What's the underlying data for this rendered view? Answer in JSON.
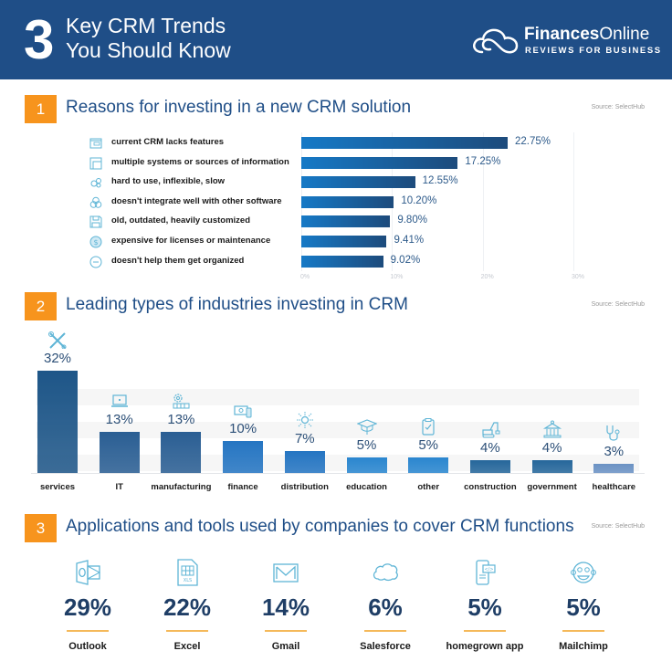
{
  "header": {
    "number": "3",
    "title_line1": "Key CRM Trends",
    "title_line2": "You Should Know",
    "logo_brand_bold": "Finances",
    "logo_brand_light": "Online",
    "logo_tagline": "REVIEWS FOR BUSINESS",
    "logo_icon": "cloud-icon"
  },
  "colors": {
    "header_bg": "#1f4e87",
    "accent_orange": "#f7941d",
    "title_blue": "#1f4e87",
    "icon_teal": "#5fb5d6"
  },
  "sections": [
    {
      "number": "1",
      "title": "Reasons for investing in a new CRM solution",
      "source": "Source: SelectHub"
    },
    {
      "number": "2",
      "title": "Leading types of industries investing in CRM",
      "source": "Source: SelectHub"
    },
    {
      "number": "3",
      "title": "Applications and tools used by companies to cover CRM functions",
      "source": "Source: SelectHub"
    }
  ],
  "chart_data": [
    {
      "type": "bar",
      "orientation": "horizontal",
      "title": "Reasons for investing in a new CRM solution",
      "categories": [
        "current CRM lacks features",
        "multiple systems or sources of information",
        "hard to use, inflexible, slow",
        "doesn't integrate well with other software",
        "old, outdated, heavily customized",
        "expensive for licenses or maintenance",
        "doesn't help them get organized"
      ],
      "icons": [
        "crm-screen-icon",
        "layout-icon",
        "gears-icon",
        "integration-circles-icon",
        "floppy-disk-icon",
        "dollar-coin-icon",
        "minus-circle-icon"
      ],
      "values": [
        22.75,
        17.25,
        12.55,
        10.2,
        9.8,
        9.41,
        9.02
      ],
      "value_labels": [
        "22.75%",
        "17.25%",
        "12.55%",
        "10.20%",
        "9.80%",
        "9.41%",
        "9.02%"
      ],
      "xlim": [
        0,
        30
      ],
      "xticks": [
        0,
        10,
        20,
        30
      ],
      "xtick_labels": [
        "0%",
        "10%",
        "20%",
        "30%"
      ],
      "grid": true,
      "xlabel": "",
      "ylabel": ""
    },
    {
      "type": "bar",
      "orientation": "vertical",
      "title": "Leading types of industries investing in CRM",
      "categories": [
        "services",
        "IT",
        "manufacturing",
        "finance",
        "distribution",
        "education",
        "other",
        "construction",
        "government",
        "healthcare"
      ],
      "icons": [
        "tools-icon",
        "laptop-icon",
        "factory-gear-icon",
        "money-icon",
        "distribution-hub-icon",
        "graduation-cap-icon",
        "clipboard-check-icon",
        "excavator-icon",
        "government-building-icon",
        "stethoscope-icon"
      ],
      "values": [
        32,
        13,
        13,
        10,
        7,
        5,
        5,
        4,
        4,
        3
      ],
      "value_labels": [
        "32%",
        "13%",
        "13%",
        "10%",
        "7%",
        "5%",
        "5%",
        "4%",
        "4%",
        "3%"
      ],
      "bar_colors": [
        "#1e5688",
        "#2a5e93",
        "#2a5e93",
        "#2575c2",
        "#2575c2",
        "#2a86cf",
        "#2a86cf",
        "#26679b",
        "#26679b",
        "#6b92c4"
      ],
      "ylim": [
        0,
        32
      ],
      "xlabel": "",
      "ylabel": "",
      "grid": true
    },
    {
      "type": "table",
      "title": "Applications and tools used by companies to cover CRM functions",
      "categories": [
        "Outlook",
        "Excel",
        "Gmail",
        "Salesforce",
        "homegrown app",
        "Mailchimp"
      ],
      "icons": [
        "outlook-icon",
        "excel-sheet-icon",
        "gmail-envelope-icon",
        "salesforce-cloud-icon",
        "mobile-code-icon",
        "mailchimp-monkey-icon"
      ],
      "values": [
        29,
        22,
        14,
        6,
        5,
        5
      ],
      "value_labels": [
        "29%",
        "22%",
        "14%",
        "6%",
        "5%",
        "5%"
      ]
    }
  ]
}
